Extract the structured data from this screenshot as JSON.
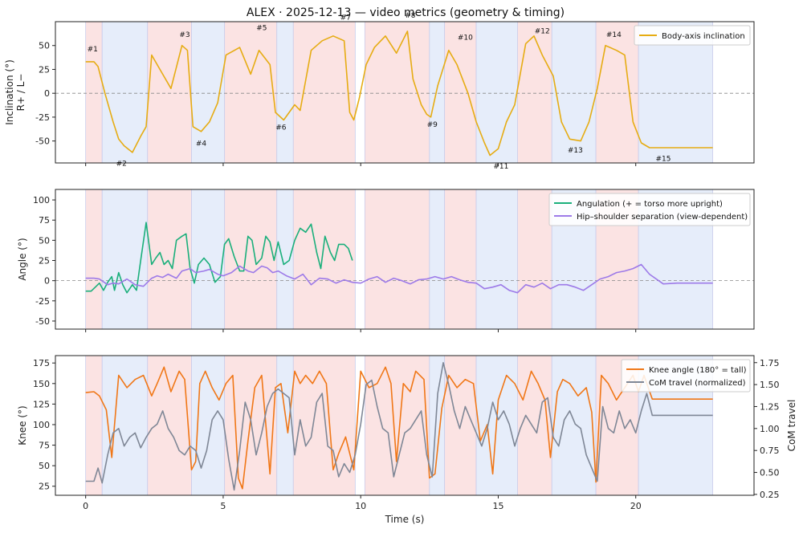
{
  "chart_data": [
    {
      "type": "line",
      "title": "ALEX · 2025-12-13 — video metrics (geometry & timing)",
      "ylabel": [
        "Inclination (°)",
        "R+ / L−"
      ],
      "xlim": [
        -1.1,
        24.3
      ],
      "ylim": [
        -73,
        75
      ],
      "yticks": [
        50,
        25,
        0,
        -25,
        -50
      ],
      "zero_line": true,
      "legend_position": "top-right",
      "series": [
        {
          "name": "Body-axis inclination",
          "color": "#e6ac13",
          "x": [
            0,
            0.3,
            0.45,
            0.7,
            1.0,
            1.2,
            1.4,
            1.7,
            2.0,
            2.2,
            2.4,
            2.7,
            3.1,
            3.5,
            3.7,
            3.9,
            4.2,
            4.5,
            4.8,
            5.1,
            5.6,
            6.0,
            6.3,
            6.7,
            6.9,
            7.2,
            7.6,
            7.8,
            8.2,
            8.6,
            9.0,
            9.4,
            9.6,
            9.75,
            9.95,
            10.2,
            10.5,
            10.9,
            11.3,
            11.7,
            11.9,
            12.2,
            12.4,
            12.55,
            12.8,
            13.2,
            13.5,
            13.9,
            14.2,
            14.5,
            14.7,
            15.0,
            15.3,
            15.6,
            16.0,
            16.3,
            16.6,
            17.0,
            17.3,
            17.6,
            18.0,
            18.3,
            18.6,
            18.9,
            19.3,
            19.6,
            19.9,
            20.2,
            20.5,
            20.9,
            21.5,
            22.0,
            22.5,
            22.8
          ],
          "y": [
            33,
            33,
            28,
            0,
            -30,
            -48,
            -55,
            -62,
            -45,
            -35,
            40,
            25,
            5,
            50,
            45,
            -35,
            -40,
            -30,
            -10,
            40,
            48,
            20,
            45,
            30,
            -20,
            -28,
            -12,
            -18,
            45,
            55,
            60,
            55,
            -20,
            -28,
            -5,
            30,
            48,
            60,
            42,
            65,
            15,
            -12,
            -22,
            -25,
            8,
            45,
            30,
            0,
            -30,
            -52,
            -65,
            -58,
            -30,
            -12,
            52,
            60,
            40,
            18,
            -30,
            -48,
            -50,
            -30,
            5,
            50,
            45,
            40,
            -30,
            -52,
            -57,
            -57,
            -57,
            -57,
            -57,
            -57
          ]
        }
      ],
      "annotations": [
        {
          "text": "#1",
          "x": 0.25,
          "y": 44
        },
        {
          "text": "#2",
          "x": 1.3,
          "y": -76
        },
        {
          "text": "#3",
          "x": 3.6,
          "y": 59
        },
        {
          "text": "#4",
          "x": 4.2,
          "y": -55
        },
        {
          "text": "#5",
          "x": 6.4,
          "y": 66
        },
        {
          "text": "#6",
          "x": 7.1,
          "y": -38
        },
        {
          "text": "#7",
          "x": 9.45,
          "y": 77
        },
        {
          "text": "#8",
          "x": 11.8,
          "y": 79
        },
        {
          "text": "#9",
          "x": 12.6,
          "y": -35
        },
        {
          "text": "#10",
          "x": 13.8,
          "y": 56
        },
        {
          "text": "#11",
          "x": 15.1,
          "y": -79
        },
        {
          "text": "#12",
          "x": 16.6,
          "y": 63
        },
        {
          "text": "#13",
          "x": 17.8,
          "y": -62
        },
        {
          "text": "#14",
          "x": 19.2,
          "y": 59
        },
        {
          "text": "#15",
          "x": 21.0,
          "y": -71
        }
      ]
    },
    {
      "type": "line",
      "ylabel": [
        "Angle (°)"
      ],
      "xlim": [
        -1.1,
        24.3
      ],
      "ylim": [
        -60,
        113
      ],
      "yticks": [
        100,
        75,
        50,
        25,
        0,
        -25,
        -50
      ],
      "zero_line": true,
      "legend_position": "top-right",
      "series": [
        {
          "name": "Angulation (+ = torso more upright)",
          "color": "#1aaf7b",
          "x": [
            0,
            0.2,
            0.35,
            0.5,
            0.65,
            0.8,
            0.95,
            1.05,
            1.2,
            1.35,
            1.5,
            1.7,
            1.85,
            2.0,
            2.2,
            2.4,
            2.55,
            2.7,
            2.85,
            3.0,
            3.15,
            3.3,
            3.5,
            3.65,
            3.8,
            3.95,
            4.1,
            4.3,
            4.5,
            4.7,
            4.9,
            5.05,
            5.2,
            5.4,
            5.6,
            5.75,
            5.9,
            6.05,
            6.2,
            6.4,
            6.55,
            6.7,
            6.85,
            7.0,
            7.2,
            7.4,
            7.6,
            7.8,
            8.0,
            8.2,
            8.4,
            8.55,
            8.7,
            8.9,
            9.05,
            9.2,
            9.4,
            9.55,
            9.7
          ],
          "y": [
            -13,
            -13,
            -8,
            -3,
            -12,
            -2,
            5,
            -12,
            10,
            -5,
            -15,
            -5,
            -12,
            25,
            72,
            20,
            28,
            35,
            20,
            25,
            15,
            50,
            55,
            58,
            15,
            -3,
            20,
            28,
            20,
            -2,
            5,
            45,
            52,
            30,
            12,
            12,
            55,
            50,
            20,
            28,
            55,
            48,
            25,
            48,
            20,
            25,
            50,
            65,
            60,
            70,
            35,
            15,
            55,
            35,
            25,
            45,
            45,
            40,
            25
          ]
        },
        {
          "name": "Hip–shoulder separation (view-dependent)",
          "color": "#9d7ae8",
          "x": [
            0,
            0.3,
            0.5,
            0.8,
            1.0,
            1.2,
            1.5,
            1.8,
            2.1,
            2.4,
            2.6,
            2.8,
            3.0,
            3.3,
            3.5,
            3.8,
            4.0,
            4.3,
            4.5,
            4.8,
            5.0,
            5.3,
            5.6,
            5.9,
            6.1,
            6.4,
            6.6,
            6.8,
            7.0,
            7.3,
            7.6,
            7.9,
            8.2,
            8.5,
            8.8,
            9.1,
            9.4,
            9.7,
            10.0,
            10.3,
            10.6,
            10.9,
            11.2,
            11.5,
            11.8,
            12.1,
            12.4,
            12.7,
            13.0,
            13.3,
            13.6,
            13.9,
            14.2,
            14.5,
            14.8,
            15.1,
            15.4,
            15.7,
            16.0,
            16.3,
            16.6,
            16.9,
            17.2,
            17.5,
            17.8,
            18.1,
            18.4,
            18.7,
            19.0,
            19.3,
            19.6,
            19.9,
            20.2,
            20.5,
            21.0,
            21.5,
            22.0,
            22.5,
            22.8
          ],
          "y": [
            3,
            3,
            2,
            -5,
            -3,
            -4,
            2,
            -5,
            -7,
            3,
            6,
            4,
            8,
            3,
            12,
            15,
            10,
            12,
            14,
            8,
            6,
            10,
            18,
            12,
            10,
            18,
            16,
            10,
            12,
            6,
            2,
            8,
            -5,
            3,
            2,
            -3,
            1,
            -2,
            -3,
            2,
            5,
            -2,
            3,
            0,
            -4,
            1,
            2,
            5,
            2,
            5,
            1,
            -2,
            -3,
            -10,
            -8,
            -5,
            -12,
            -15,
            -5,
            -8,
            -3,
            -10,
            -5,
            -5,
            -8,
            -12,
            -5,
            2,
            5,
            10,
            12,
            15,
            20,
            8,
            -4,
            -3,
            -3,
            -3,
            -3
          ]
        }
      ]
    },
    {
      "type": "line",
      "xlabel": "Time (s)",
      "ylabel": [
        "Knee (°)"
      ],
      "ylabel_right": "CoM travel",
      "xlim": [
        -1.1,
        24.3
      ],
      "ylim": [
        14,
        184
      ],
      "ylim_right": [
        0.24,
        1.83
      ],
      "yticks": [
        175,
        150,
        125,
        100,
        75,
        50,
        25
      ],
      "yticks_right": [
        1.75,
        1.5,
        1.25,
        1.0,
        0.75,
        0.5,
        0.25
      ],
      "xticks": [
        0,
        5,
        10,
        15,
        20
      ],
      "legend_position": "top-right",
      "series": [
        {
          "name": "Knee angle (180° = tall)",
          "color": "#f07717",
          "x": [
            0,
            0.3,
            0.5,
            0.75,
            0.95,
            1.2,
            1.5,
            1.8,
            2.1,
            2.4,
            2.6,
            2.85,
            3.1,
            3.4,
            3.6,
            3.85,
            4.0,
            4.15,
            4.35,
            4.6,
            4.85,
            5.1,
            5.35,
            5.55,
            5.7,
            5.9,
            6.15,
            6.4,
            6.7,
            6.9,
            7.1,
            7.35,
            7.6,
            7.8,
            8.0,
            8.25,
            8.5,
            8.75,
            9.0,
            9.2,
            9.45,
            9.75,
            10.0,
            10.3,
            10.6,
            10.9,
            11.1,
            11.3,
            11.55,
            11.8,
            12.0,
            12.3,
            12.5,
            12.7,
            12.95,
            13.2,
            13.5,
            13.8,
            14.1,
            14.35,
            14.6,
            14.8,
            15.0,
            15.3,
            15.6,
            15.9,
            16.2,
            16.45,
            16.7,
            16.9,
            17.15,
            17.35,
            17.6,
            17.9,
            18.2,
            18.4,
            18.55,
            18.75,
            19.0,
            19.3,
            19.6,
            19.9,
            20.1,
            20.3,
            20.6,
            21.0,
            21.5,
            22.0,
            22.8
          ],
          "y": [
            139,
            140,
            135,
            118,
            60,
            160,
            145,
            155,
            160,
            135,
            150,
            170,
            140,
            165,
            155,
            45,
            55,
            150,
            165,
            145,
            130,
            150,
            160,
            35,
            22,
            80,
            145,
            160,
            40,
            145,
            150,
            90,
            165,
            150,
            160,
            150,
            165,
            150,
            45,
            65,
            85,
            45,
            165,
            145,
            150,
            170,
            150,
            55,
            150,
            140,
            165,
            155,
            35,
            40,
            120,
            160,
            145,
            155,
            150,
            80,
            100,
            40,
            130,
            160,
            150,
            130,
            165,
            150,
            130,
            60,
            140,
            155,
            150,
            135,
            145,
            115,
            30,
            160,
            150,
            130,
            145,
            160,
            140,
            160,
            131,
            131,
            131,
            131,
            131
          ]
        },
        {
          "name": "CoM travel (normalized)",
          "color": "#7f8796",
          "axis": "right",
          "x": [
            0,
            0.3,
            0.45,
            0.6,
            0.8,
            1.0,
            1.2,
            1.4,
            1.6,
            1.8,
            2.0,
            2.2,
            2.4,
            2.6,
            2.8,
            3.0,
            3.2,
            3.4,
            3.6,
            3.8,
            4.0,
            4.2,
            4.4,
            4.6,
            4.8,
            5.0,
            5.2,
            5.4,
            5.6,
            5.8,
            6.0,
            6.2,
            6.4,
            6.6,
            6.8,
            7.0,
            7.2,
            7.4,
            7.6,
            7.8,
            8.0,
            8.2,
            8.4,
            8.6,
            8.8,
            9.0,
            9.2,
            9.4,
            9.6,
            9.8,
            10.0,
            10.2,
            10.4,
            10.6,
            10.8,
            11.0,
            11.2,
            11.4,
            11.6,
            11.8,
            12.0,
            12.2,
            12.4,
            12.6,
            12.8,
            13.0,
            13.2,
            13.4,
            13.6,
            13.8,
            14.0,
            14.2,
            14.4,
            14.6,
            14.8,
            15.0,
            15.2,
            15.4,
            15.6,
            15.8,
            16.0,
            16.2,
            16.4,
            16.6,
            16.8,
            17.0,
            17.2,
            17.4,
            17.6,
            17.8,
            18.0,
            18.2,
            18.4,
            18.6,
            18.8,
            19.0,
            19.2,
            19.4,
            19.6,
            19.8,
            20.0,
            20.2,
            20.4,
            20.6,
            21.0,
            22.0,
            22.8
          ],
          "y": [
            0.4,
            0.4,
            0.55,
            0.38,
            0.7,
            0.95,
            1.0,
            0.8,
            0.9,
            0.95,
            0.78,
            0.9,
            1.0,
            1.05,
            1.2,
            1.0,
            0.9,
            0.75,
            0.7,
            0.8,
            0.75,
            0.55,
            0.75,
            1.1,
            1.2,
            1.1,
            0.65,
            0.3,
            0.75,
            1.3,
            1.1,
            0.7,
            0.95,
            1.25,
            1.4,
            1.45,
            1.4,
            1.35,
            0.7,
            1.1,
            0.8,
            0.9,
            1.3,
            1.4,
            0.8,
            0.75,
            0.45,
            0.6,
            0.5,
            0.7,
            1.05,
            1.5,
            1.55,
            1.25,
            1.0,
            0.95,
            0.45,
            0.7,
            0.95,
            1.0,
            1.1,
            1.2,
            0.7,
            0.45,
            1.4,
            1.75,
            1.5,
            1.2,
            1.0,
            1.25,
            1.1,
            0.95,
            0.8,
            1.0,
            1.3,
            1.1,
            1.2,
            1.05,
            0.8,
            1.0,
            1.15,
            1.05,
            0.95,
            1.3,
            1.35,
            0.9,
            0.8,
            1.1,
            1.2,
            1.05,
            1.0,
            0.7,
            0.55,
            0.4,
            1.25,
            1.0,
            0.95,
            1.2,
            1.0,
            1.1,
            0.95,
            1.2,
            1.4,
            1.15,
            1.15,
            1.15,
            1.15
          ]
        }
      ]
    }
  ],
  "phase_spans": [
    {
      "x0": 0.0,
      "x1": 0.6,
      "kind": "turn"
    },
    {
      "x0": 0.6,
      "x1": 2.25,
      "kind": "transition"
    },
    {
      "x0": 2.25,
      "x1": 3.85,
      "kind": "turn"
    },
    {
      "x0": 3.85,
      "x1": 5.05,
      "kind": "transition"
    },
    {
      "x0": 5.05,
      "x1": 6.95,
      "kind": "turn"
    },
    {
      "x0": 6.95,
      "x1": 7.55,
      "kind": "transition"
    },
    {
      "x0": 7.55,
      "x1": 9.8,
      "kind": "turn"
    },
    {
      "x0": 10.15,
      "x1": 12.5,
      "kind": "turn"
    },
    {
      "x0": 12.5,
      "x1": 13.05,
      "kind": "transition"
    },
    {
      "x0": 13.05,
      "x1": 14.2,
      "kind": "turn"
    },
    {
      "x0": 14.2,
      "x1": 15.7,
      "kind": "transition"
    },
    {
      "x0": 15.7,
      "x1": 16.95,
      "kind": "turn"
    },
    {
      "x0": 16.95,
      "x1": 18.55,
      "kind": "transition"
    },
    {
      "x0": 18.55,
      "x1": 20.1,
      "kind": "turn"
    },
    {
      "x0": 20.1,
      "x1": 22.8,
      "kind": "transition"
    }
  ],
  "colors": {
    "turn": "#fbe3e3",
    "transition": "#e6edfa",
    "span_edge": "#c9cdeb",
    "zero_line": "#888888",
    "frame": "#222222"
  }
}
